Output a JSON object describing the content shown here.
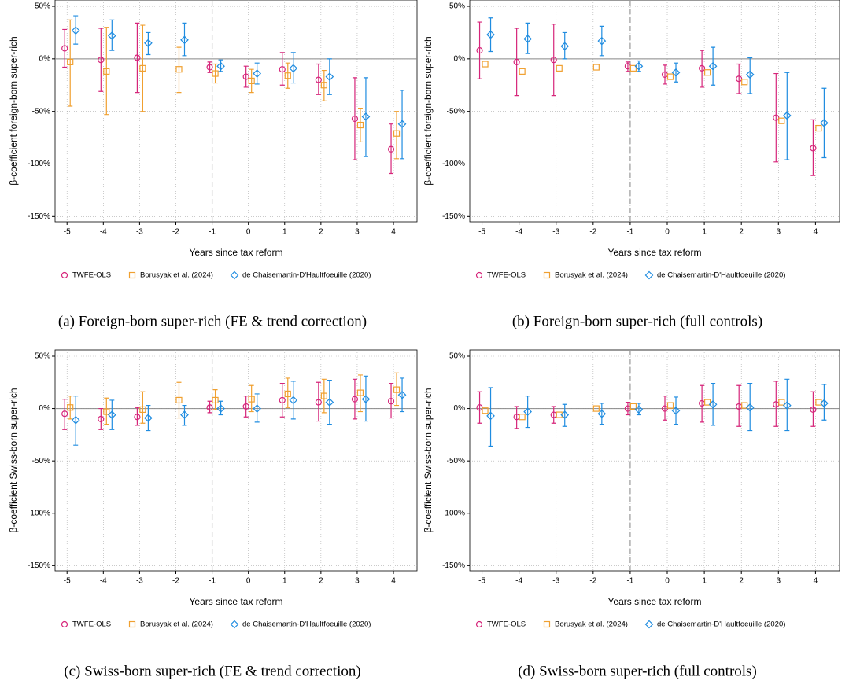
{
  "chart_data": [
    {
      "type": "errorbar",
      "caption": "(a) Foreign-born super-rich (FE & trend correction)",
      "x_label": "Years since tax reform",
      "y_label": "β-coefficient foreign-born super-rich",
      "x": [
        -5,
        -4,
        -3,
        -2,
        -1,
        0,
        1,
        2,
        3,
        4
      ],
      "xlim": [
        -5.33,
        4.65
      ],
      "xticks": [
        -5,
        -4,
        -3,
        -2,
        -1,
        0,
        1,
        2,
        3,
        4
      ],
      "ylim": [
        -155,
        56
      ],
      "yticks": [
        {
          "value": 50,
          "label": "50%"
        },
        {
          "value": 0,
          "label": "0%"
        },
        {
          "value": -50,
          "label": "-50%"
        },
        {
          "value": -100,
          "label": "-100%"
        },
        {
          "value": -150,
          "label": "-150%"
        }
      ],
      "grid": true,
      "reference_x": -1,
      "reference_y": 0,
      "series": [
        {
          "name": "TWFE-OLS",
          "color": "#d6257a",
          "marker": "circle",
          "values": [
            10,
            -1,
            1,
            null,
            -8,
            -17,
            -10,
            -20,
            -57,
            -86
          ],
          "ci_low": [
            -8,
            -31,
            -32,
            null,
            -13,
            -27,
            -25,
            -34,
            -96,
            -109
          ],
          "ci_high": [
            28,
            29,
            34,
            null,
            -3,
            -7,
            6,
            -5,
            -18,
            -62
          ]
        },
        {
          "name": "Borusyak et al. (2024)",
          "color": "#f0a030",
          "marker": "square",
          "values": [
            -3,
            -12,
            -9,
            -10,
            -14,
            -21,
            -16,
            -25,
            -63,
            -71
          ],
          "ci_low": [
            -45,
            -53,
            -50,
            -32,
            -23,
            -32,
            -28,
            -40,
            -79,
            -95
          ],
          "ci_high": [
            37,
            30,
            32,
            11,
            -5,
            -10,
            -4,
            -11,
            -47,
            -50
          ]
        },
        {
          "name": "de Chaisemartin-D'Haultfoeuille (2020)",
          "color": "#1f8ce0",
          "marker": "diamond",
          "values": [
            27,
            22,
            15,
            18,
            -7,
            -14,
            -9,
            -17,
            -55,
            -62
          ],
          "ci_low": [
            14,
            8,
            4,
            3,
            -12,
            -24,
            -23,
            -34,
            -93,
            -95
          ],
          "ci_high": [
            41,
            37,
            25,
            34,
            -1,
            -4,
            6,
            0,
            -18,
            -30
          ]
        }
      ]
    },
    {
      "type": "errorbar",
      "caption": "(b) Foreign-born super-rich (full controls)",
      "x_label": "Years since tax reform",
      "y_label": "β-coefficient foreign-born super-rich",
      "x": [
        -5,
        -4,
        -3,
        -2,
        -1,
        0,
        1,
        2,
        3,
        4
      ],
      "xlim": [
        -5.33,
        4.65
      ],
      "xticks": [
        -5,
        -4,
        -3,
        -2,
        -1,
        0,
        1,
        2,
        3,
        4
      ],
      "ylim": [
        -155,
        56
      ],
      "yticks": [
        {
          "value": 50,
          "label": "50%"
        },
        {
          "value": 0,
          "label": "0%"
        },
        {
          "value": -50,
          "label": "-50%"
        },
        {
          "value": -100,
          "label": "-100%"
        },
        {
          "value": -150,
          "label": "-150%"
        }
      ],
      "grid": true,
      "reference_x": -1,
      "reference_y": 0,
      "series": [
        {
          "name": "TWFE-OLS",
          "color": "#d6257a",
          "marker": "circle",
          "values": [
            8,
            -3,
            -1,
            null,
            -7,
            -15,
            -9,
            -19,
            -56,
            -85
          ],
          "ci_low": [
            -19,
            -35,
            -35,
            null,
            -12,
            -24,
            -27,
            -33,
            -98,
            -111
          ],
          "ci_high": [
            35,
            29,
            33,
            null,
            -3,
            -6,
            8,
            -5,
            -14,
            -58
          ]
        },
        {
          "name": "Borusyak et al. (2024)",
          "color": "#f0a030",
          "marker": "square",
          "values": [
            -5,
            -12,
            -9,
            -8,
            -9,
            -17,
            -13,
            -22,
            -59,
            -66
          ],
          "ci_low": [
            null,
            null,
            null,
            null,
            null,
            null,
            null,
            null,
            null,
            null
          ],
          "ci_high": [
            null,
            null,
            null,
            null,
            null,
            null,
            null,
            null,
            null,
            null
          ]
        },
        {
          "name": "de Chaisemartin-D'Haultfoeuille (2020)",
          "color": "#1f8ce0",
          "marker": "diamond",
          "values": [
            23,
            19,
            12,
            17,
            -7,
            -13,
            -7,
            -15,
            -54,
            -61
          ],
          "ci_low": [
            7,
            5,
            0,
            3,
            -12,
            -22,
            -25,
            -33,
            -96,
            -94
          ],
          "ci_high": [
            39,
            34,
            25,
            31,
            -2,
            -4,
            11,
            1,
            -13,
            -28
          ]
        }
      ]
    },
    {
      "type": "errorbar",
      "caption": "(c) Swiss-born super-rich (FE & trend correction)",
      "x_label": "Years since tax reform",
      "y_label": "β-coefficient Swiss-born super-rich",
      "x": [
        -5,
        -4,
        -3,
        -2,
        -1,
        0,
        1,
        2,
        3,
        4
      ],
      "xlim": [
        -5.33,
        4.65
      ],
      "xticks": [
        -5,
        -4,
        -3,
        -2,
        -1,
        0,
        1,
        2,
        3,
        4
      ],
      "ylim": [
        -155,
        56
      ],
      "yticks": [
        {
          "value": 50,
          "label": "50%"
        },
        {
          "value": 0,
          "label": "0%"
        },
        {
          "value": -50,
          "label": "-50%"
        },
        {
          "value": -100,
          "label": "-100%"
        },
        {
          "value": -150,
          "label": "-150%"
        }
      ],
      "grid": true,
      "reference_x": -1,
      "reference_y": 0,
      "series": [
        {
          "name": "TWFE-OLS",
          "color": "#d6257a",
          "marker": "circle",
          "values": [
            -5,
            -10,
            -8,
            null,
            1,
            2,
            8,
            6,
            9,
            7
          ],
          "ci_low": [
            -20,
            -20,
            -16,
            null,
            -4,
            -8,
            -8,
            -12,
            -10,
            -9
          ],
          "ci_high": [
            9,
            0,
            1,
            null,
            7,
            12,
            24,
            25,
            28,
            24
          ]
        },
        {
          "name": "Borusyak et al. (2024)",
          "color": "#f0a030",
          "marker": "square",
          "values": [
            1,
            -3,
            -1,
            8,
            8,
            9,
            14,
            12,
            15,
            18
          ],
          "ci_low": [
            -10,
            -15,
            -14,
            -9,
            -1,
            -3,
            1,
            -4,
            -3,
            3
          ],
          "ci_high": [
            12,
            10,
            16,
            25,
            18,
            22,
            29,
            28,
            32,
            34
          ]
        },
        {
          "name": "de Chaisemartin-D'Haultfoeuille (2020)",
          "color": "#1f8ce0",
          "marker": "diamond",
          "values": [
            -11,
            -6,
            -9,
            -6,
            0,
            0,
            8,
            6,
            9,
            13
          ],
          "ci_low": [
            -35,
            -20,
            -21,
            -16,
            -6,
            -13,
            -10,
            -15,
            -12,
            -3
          ],
          "ci_high": [
            12,
            8,
            3,
            3,
            7,
            14,
            26,
            27,
            31,
            29
          ]
        }
      ]
    },
    {
      "type": "errorbar",
      "caption": "(d) Swiss-born super-rich (full controls)",
      "x_label": "Years since tax reform",
      "y_label": "β-coefficient Swiss-born super-rich",
      "x": [
        -5,
        -4,
        -3,
        -2,
        -1,
        0,
        1,
        2,
        3,
        4
      ],
      "xlim": [
        -5.33,
        4.65
      ],
      "xticks": [
        -5,
        -4,
        -3,
        -2,
        -1,
        0,
        1,
        2,
        3,
        4
      ],
      "ylim": [
        -155,
        56
      ],
      "yticks": [
        {
          "value": 50,
          "label": "50%"
        },
        {
          "value": 0,
          "label": "0%"
        },
        {
          "value": -50,
          "label": "-50%"
        },
        {
          "value": -100,
          "label": "-100%"
        },
        {
          "value": -150,
          "label": "-150%"
        }
      ],
      "grid": true,
      "reference_x": -1,
      "reference_y": 0,
      "series": [
        {
          "name": "TWFE-OLS",
          "color": "#d6257a",
          "marker": "circle",
          "values": [
            1,
            -8,
            -6,
            null,
            0,
            0,
            5,
            2,
            4,
            -1
          ],
          "ci_low": [
            -14,
            -19,
            -14,
            null,
            -6,
            -11,
            -13,
            -17,
            -17,
            -17
          ],
          "ci_high": [
            16,
            2,
            2,
            null,
            6,
            12,
            22,
            22,
            26,
            16
          ]
        },
        {
          "name": "Borusyak et al. (2024)",
          "color": "#f0a030",
          "marker": "square",
          "values": [
            -2,
            -8,
            -6,
            0,
            2,
            3,
            6,
            3,
            6,
            6
          ],
          "ci_low": [
            null,
            null,
            null,
            null,
            null,
            null,
            null,
            null,
            null,
            null
          ],
          "ci_high": [
            null,
            null,
            null,
            null,
            null,
            null,
            null,
            null,
            null,
            null
          ]
        },
        {
          "name": "de Chaisemartin-D'Haultfoeuille (2020)",
          "color": "#1f8ce0",
          "marker": "diamond",
          "values": [
            -7,
            -3,
            -6,
            -5,
            -1,
            -2,
            4,
            1,
            3,
            5
          ],
          "ci_low": [
            -36,
            -18,
            -17,
            -15,
            -6,
            -15,
            -16,
            -21,
            -21,
            -11
          ],
          "ci_high": [
            20,
            12,
            4,
            5,
            5,
            11,
            24,
            24,
            28,
            23
          ]
        }
      ]
    }
  ]
}
